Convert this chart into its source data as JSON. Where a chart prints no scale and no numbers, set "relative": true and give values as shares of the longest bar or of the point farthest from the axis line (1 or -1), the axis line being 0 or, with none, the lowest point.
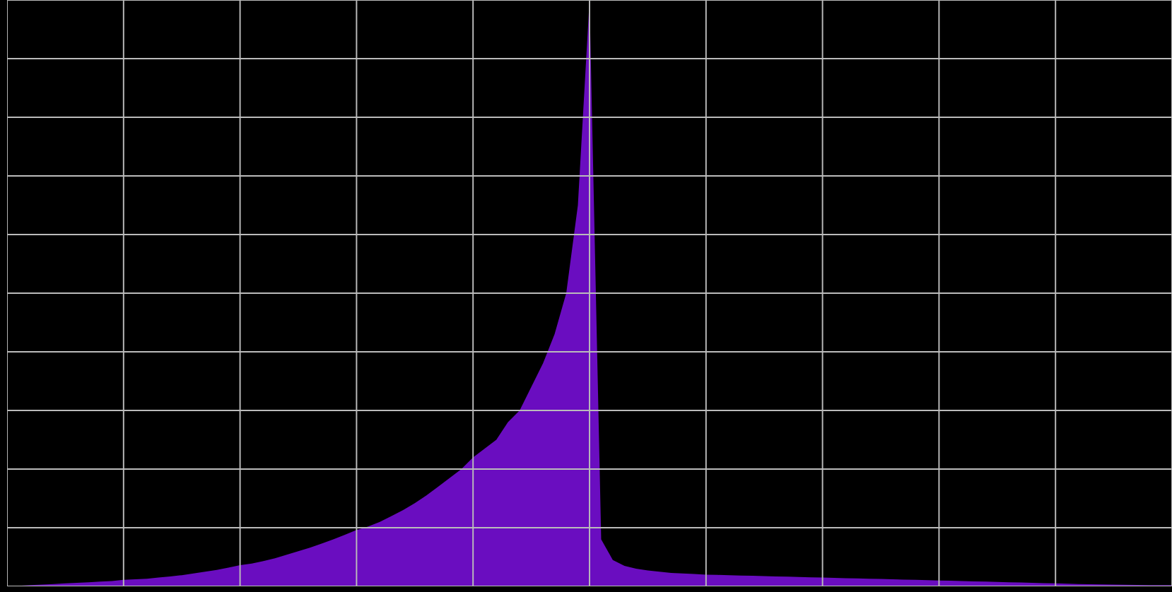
{
  "chart_data": {
    "type": "area",
    "relative": true,
    "grid": true,
    "color": "#6a0dc0",
    "categories": [
      null,
      null,
      null,
      null,
      null,
      null,
      null,
      null,
      null,
      null,
      null,
      null,
      null,
      null,
      null,
      null,
      null,
      null,
      null,
      null,
      null,
      null,
      null,
      null,
      null,
      null,
      null,
      null,
      null,
      null,
      null,
      null,
      null,
      null,
      null,
      null,
      null,
      null,
      null,
      null,
      null,
      null,
      null,
      null,
      null,
      null,
      null,
      null,
      null,
      null,
      null,
      null,
      null,
      null,
      null,
      null,
      null,
      null,
      null,
      null,
      null,
      null,
      null,
      null,
      null,
      null,
      null,
      null,
      null,
      null,
      null,
      null,
      null,
      null,
      null,
      null,
      null,
      null,
      null,
      null,
      null,
      null,
      null,
      null,
      null,
      null,
      null,
      null,
      null,
      null,
      null,
      null,
      null,
      null,
      null,
      null,
      null,
      null,
      null,
      null,
      null
    ],
    "values": [
      0,
      0.001,
      0.002,
      0.003,
      0.004,
      0.005,
      0.006,
      0.007,
      0.008,
      0.009,
      0.011,
      0.012,
      0.013,
      0.015,
      0.017,
      0.019,
      0.022,
      0.025,
      0.028,
      0.032,
      0.036,
      0.039,
      0.043,
      0.048,
      0.054,
      0.06,
      0.066,
      0.073,
      0.08,
      0.088,
      0.096,
      0.102,
      0.11,
      0.12,
      0.13,
      0.142,
      0.155,
      0.17,
      0.185,
      0.2,
      0.22,
      0.235,
      0.25,
      0.28,
      0.3,
      0.34,
      0.38,
      0.43,
      0.5,
      0.65,
      1,
      0.08,
      0.045,
      0.035,
      0.03,
      0.027,
      0.025,
      0.023,
      0.022,
      0.021,
      0.02,
      0.0195,
      0.019,
      0.0185,
      0.018,
      0.0175,
      0.017,
      0.0165,
      0.016,
      0.0155,
      0.015,
      0.0145,
      0.014,
      0.0135,
      0.013,
      0.0125,
      0.012,
      0.0115,
      0.011,
      0.0105,
      0.01,
      0.0095,
      0.009,
      0.0085,
      0.008,
      0.0075,
      0.007,
      0.0065,
      0.006,
      0.0055,
      0.005,
      0.0045,
      0.004,
      0.0037,
      0.0034,
      0.0031,
      0.0028,
      0.0025,
      0.0022,
      0.002,
      0.002
    ]
  }
}
